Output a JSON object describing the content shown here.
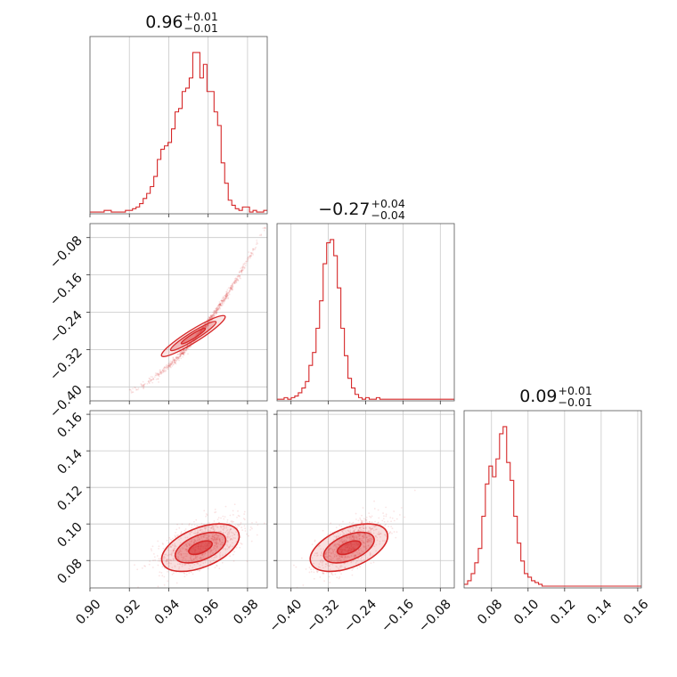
{
  "chart_data": {
    "type": "scatter",
    "kind": "corner-plot",
    "color": "#d62728",
    "grid": true,
    "parameters": [
      {
        "title_value": "0.96",
        "title_plus": "+0.01",
        "title_minus": "−0.01",
        "range": [
          0.9,
          0.99
        ],
        "ticks": [
          0.9,
          0.92,
          0.94,
          0.96,
          0.98
        ],
        "tick_labels": [
          "0.90",
          "0.92",
          "0.94",
          "0.96",
          "0.98"
        ],
        "hist_edges_start": 0.9,
        "hist_bin_width": 0.0018,
        "hist_counts": [
          1,
          1,
          1,
          1,
          2,
          2,
          1,
          1,
          1,
          1,
          2,
          2,
          3,
          4,
          6,
          9,
          12,
          16,
          22,
          32,
          38,
          40,
          42,
          50,
          60,
          62,
          72,
          74,
          80,
          95,
          95,
          80,
          88,
          72,
          72,
          60,
          52,
          30,
          18,
          8,
          5,
          3,
          2,
          4,
          4,
          1,
          2,
          1,
          1,
          2
        ]
      },
      {
        "title_value": "−0.27",
        "title_plus": "+0.04",
        "title_minus": "−0.04",
        "range": [
          -0.43,
          -0.05
        ],
        "ticks": [
          -0.4,
          -0.32,
          -0.24,
          -0.16,
          -0.08
        ],
        "tick_labels": [
          "−0.40",
          "−0.32",
          "−0.24",
          "−0.16",
          "−0.08"
        ],
        "hist_edges_start": -0.43,
        "hist_bin_width": 0.0076,
        "hist_counts": [
          1,
          1,
          2,
          1,
          2,
          3,
          5,
          8,
          12,
          22,
          30,
          45,
          62,
          85,
          98,
          100,
          90,
          70,
          45,
          28,
          14,
          8,
          4,
          2,
          1,
          2,
          1,
          1,
          2,
          1,
          1,
          1,
          1,
          1,
          1,
          1,
          1,
          1,
          1,
          1,
          1,
          1,
          1,
          1,
          1,
          1,
          1,
          1,
          1,
          1
        ]
      },
      {
        "title_value": "0.09",
        "title_plus": "+0.01",
        "title_minus": "−0.01",
        "range": [
          0.065,
          0.162
        ],
        "ticks": [
          0.08,
          0.1,
          0.12,
          0.14,
          0.16
        ],
        "tick_labels": [
          "0.08",
          "0.10",
          "0.12",
          "0.14",
          "0.16"
        ],
        "y_ticks": [
          0.08,
          0.1,
          0.12,
          0.14,
          0.16
        ],
        "y_tick_labels": [
          "0.08",
          "0.10",
          "0.12",
          "0.14",
          "0.16"
        ],
        "hist_edges_start": 0.065,
        "hist_bin_width": 0.00194,
        "hist_counts": [
          2,
          4,
          8,
          14,
          22,
          40,
          58,
          68,
          62,
          72,
          86,
          90,
          70,
          60,
          40,
          25,
          15,
          8,
          6,
          4,
          3,
          2,
          1,
          1,
          1,
          1,
          1,
          1,
          1,
          1,
          1,
          1,
          1,
          1,
          1,
          1,
          1,
          1,
          1,
          1,
          1,
          1,
          1,
          1,
          1,
          1,
          1,
          1,
          1,
          1
        ]
      }
    ]
  }
}
